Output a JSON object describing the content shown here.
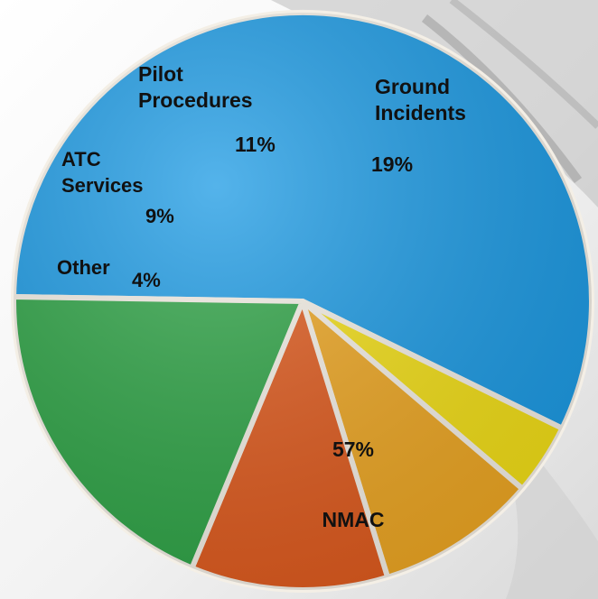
{
  "chart_data": {
    "type": "pie",
    "title": "",
    "slices": [
      {
        "name_lines": [
          "NMAC"
        ],
        "value": 57,
        "label": "57%",
        "color": "#1b9ae4"
      },
      {
        "name_lines": [
          "Other"
        ],
        "value": 4,
        "label": "4%",
        "color": "#f2de16"
      },
      {
        "name_lines": [
          "ATC",
          "Services"
        ],
        "value": 9,
        "label": "9%",
        "color": "#eda622"
      },
      {
        "name_lines": [
          "Pilot",
          "Procedures"
        ],
        "value": 11,
        "label": "11%",
        "color": "#df5a1d"
      },
      {
        "name_lines": [
          "Ground",
          "Incidents"
        ],
        "value": 19,
        "label": "19%",
        "color": "#2ea446"
      }
    ]
  }
}
